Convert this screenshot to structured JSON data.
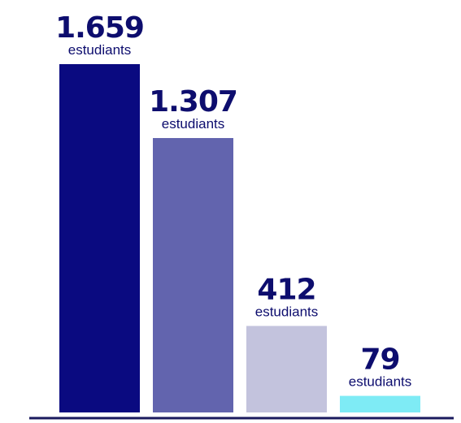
{
  "chart_data": {
    "type": "bar",
    "categories": [
      "",
      "",
      "",
      ""
    ],
    "values": [
      1659,
      1307,
      412,
      79
    ],
    "value_labels": [
      "1.659",
      "1.307",
      "412",
      "79"
    ],
    "unit_label": "estudiants",
    "colors": [
      "#0a0a80",
      "#6264ae",
      "#c3c3dd",
      "#7eebf5"
    ],
    "axis_color": "#1a1a5e",
    "ylim": [
      0,
      1659
    ],
    "grid": false,
    "legend": "none",
    "title": "",
    "xlabel": "",
    "ylabel": ""
  }
}
